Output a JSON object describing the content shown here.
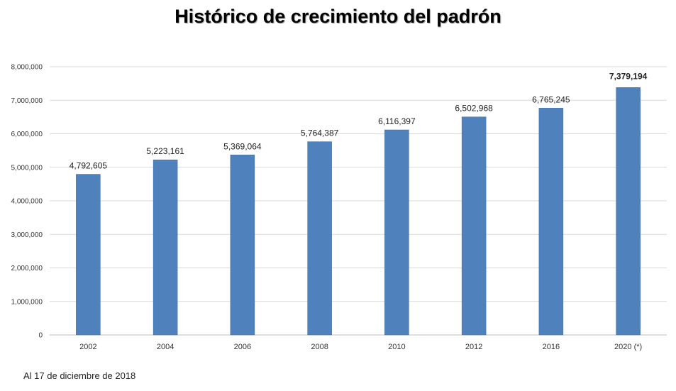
{
  "chart_data": {
    "type": "bar",
    "title": "Histórico de crecimiento del padrón",
    "categories": [
      "2002",
      "2004",
      "2006",
      "2008",
      "2010",
      "2012",
      "2016",
      "2020 (*)"
    ],
    "values": [
      4792605,
      5223161,
      5369064,
      5764387,
      6116397,
      6502968,
      6765245,
      7379194
    ],
    "data_labels": [
      "4,792,605",
      "5,223,161",
      "5,369,064",
      "5,764,387",
      "6,116,397",
      "6,502,968",
      "6,765,245",
      "7,379,194"
    ],
    "y_ticks": [
      "0",
      "1,000,000",
      "2,000,000",
      "3,000,000",
      "4,000,000",
      "5,000,000",
      "6,000,000",
      "7,000,000",
      "8,000,000"
    ],
    "ylim": [
      0,
      8000000
    ],
    "xlabel": "",
    "ylabel": "",
    "grid": true,
    "bar_color": "#4f81bd",
    "bold_last_label": true
  },
  "footnote": "Al 17 de diciembre  de 2018"
}
